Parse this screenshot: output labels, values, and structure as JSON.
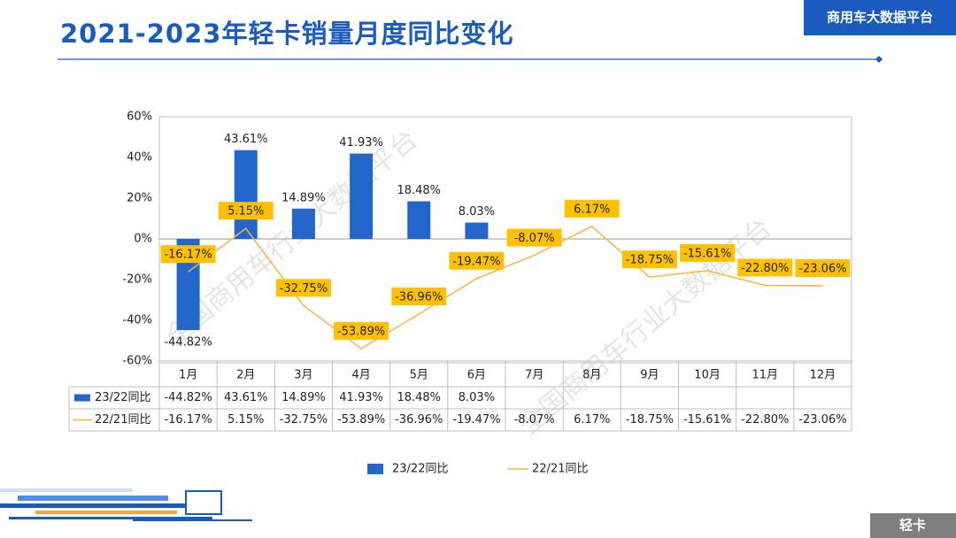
{
  "header": {
    "title": "2021-2023年轻卡销量月度同比变化",
    "badge": "商用车大数据平台"
  },
  "footer": {
    "label": "轻卡"
  },
  "watermark": "全国商用车行业大数据平台",
  "chart_data": {
    "type": "combo",
    "categories": [
      "1月",
      "2月",
      "3月",
      "4月",
      "5月",
      "6月",
      "7月",
      "8月",
      "9月",
      "10月",
      "11月",
      "12月"
    ],
    "series": [
      {
        "name": "23/22同比",
        "type": "bar",
        "color": "#2266cc",
        "values": [
          -44.82,
          43.61,
          14.89,
          41.93,
          18.48,
          8.03,
          null,
          null,
          null,
          null,
          null,
          null
        ],
        "value_labels": [
          "-44.82%",
          "43.61%",
          "14.89%",
          "41.93%",
          "18.48%",
          "8.03%",
          null,
          null,
          null,
          null,
          null,
          null
        ]
      },
      {
        "name": "22/21同比",
        "type": "line",
        "color": "#ffb040",
        "label_box": "#ffc000",
        "values": [
          -16.17,
          5.15,
          -32.75,
          -53.89,
          -36.96,
          -19.47,
          -8.07,
          6.17,
          -18.75,
          -15.61,
          -22.8,
          -23.06
        ],
        "value_labels": [
          "-16.17%",
          "5.15%",
          "-32.75%",
          "-53.89%",
          "-36.96%",
          "-19.47%",
          "-8.07%",
          "6.17%",
          "-18.75%",
          "-15.61%",
          "-22.80%",
          "-23.06%"
        ]
      }
    ],
    "ylim": [
      -60,
      60
    ],
    "yticks": [
      {
        "value": -60,
        "label": "-60%"
      },
      {
        "value": -40,
        "label": "-40%"
      },
      {
        "value": -20,
        "label": "-20%"
      },
      {
        "value": 0,
        "label": "0%"
      },
      {
        "value": 20,
        "label": "20%"
      },
      {
        "value": 40,
        "label": "40%"
      },
      {
        "value": 60,
        "label": "60%"
      }
    ],
    "grid": false,
    "legend": "bottom"
  }
}
